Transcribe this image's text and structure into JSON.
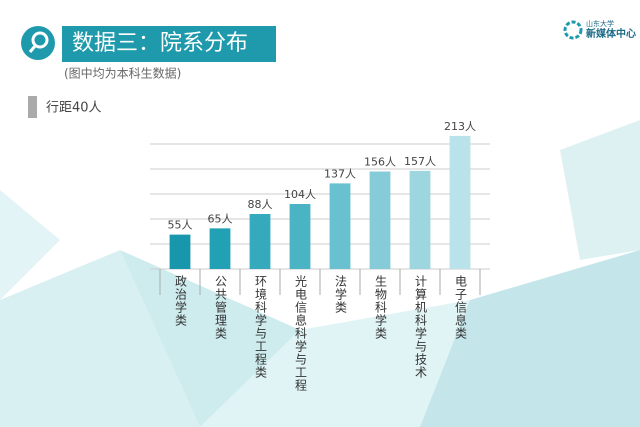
{
  "chart_data": {
    "type": "bar",
    "title": "数据三：院系分布",
    "subtitle": "(图中均为本科生数据)",
    "grid_note": "行距40人",
    "categories": [
      "政治学类",
      "公共管理类",
      "环境科学与工程类",
      "光电信息科学与工程",
      "法学类",
      "生物科学类",
      "计算机科学与技术",
      "电子信息类"
    ],
    "values": [
      55,
      65,
      88,
      104,
      137,
      156,
      157,
      213
    ],
    "value_labels": [
      "55人",
      "65人",
      "88人",
      "104人",
      "137人",
      "156人",
      "157人",
      "213人"
    ],
    "colors": [
      "#1896ab",
      "#22a0b4",
      "#35aabd",
      "#4ab3c4",
      "#69c0cf",
      "#85cbd8",
      "#9ed6e0",
      "#b9e2ea"
    ],
    "ylim": [
      0,
      240
    ],
    "yticks": [
      0,
      40,
      80,
      120,
      160,
      200
    ],
    "grid": true
  },
  "logo": {
    "line1": "山东大学",
    "line2": "新媒体中心"
  }
}
